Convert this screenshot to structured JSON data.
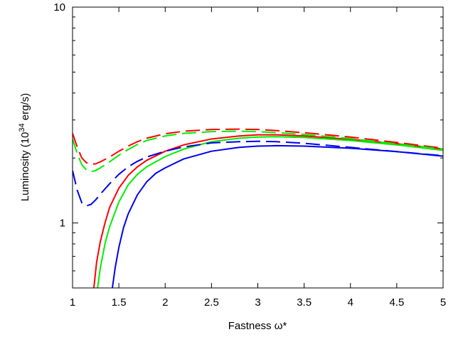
{
  "chart_data": {
    "type": "line",
    "title": "",
    "xlabel": "Fastness ω*",
    "ylabel": "Luminosity (10^34 erg/s)",
    "ylabel_parts": {
      "pre": "Luminosity (10",
      "sup": "34",
      "post": " erg/s)"
    },
    "xlim": [
      1,
      5
    ],
    "ylim": [
      0.5,
      10
    ],
    "yscale": "log",
    "grid": false,
    "legend": "none",
    "x_ticks": [
      1,
      1.5,
      2,
      2.5,
      3,
      3.5,
      4,
      4.5,
      5
    ],
    "x_tick_labels": [
      "1",
      "1.5",
      "2",
      "2.5",
      "3",
      "3.5",
      "4",
      "4.5",
      "5"
    ],
    "y_ticks": [
      1,
      10
    ],
    "y_tick_labels": [
      "1",
      "10"
    ],
    "series": [
      {
        "color": "#ff0000",
        "style": "solid",
        "x": [
          1.23,
          1.26,
          1.3,
          1.35,
          1.4,
          1.5,
          1.6,
          1.7,
          1.8,
          2.0,
          2.2,
          2.5,
          2.8,
          3.0,
          3.2,
          3.5,
          4.0,
          4.5,
          5.0
        ],
        "y": [
          0.5,
          0.66,
          0.82,
          1.0,
          1.18,
          1.45,
          1.66,
          1.82,
          1.95,
          2.15,
          2.3,
          2.45,
          2.53,
          2.56,
          2.56,
          2.53,
          2.44,
          2.33,
          2.2
        ]
      },
      {
        "color": "#00ee00",
        "style": "solid",
        "x": [
          1.27,
          1.3,
          1.35,
          1.4,
          1.5,
          1.6,
          1.7,
          1.8,
          2.0,
          2.2,
          2.5,
          2.8,
          3.0,
          3.2,
          3.5,
          4.0,
          4.5,
          5.0
        ],
        "y": [
          0.5,
          0.62,
          0.8,
          0.96,
          1.25,
          1.5,
          1.68,
          1.82,
          2.03,
          2.2,
          2.38,
          2.47,
          2.5,
          2.51,
          2.49,
          2.41,
          2.3,
          2.17
        ]
      },
      {
        "color": "#0000ee",
        "style": "solid",
        "x": [
          1.43,
          1.46,
          1.5,
          1.55,
          1.6,
          1.7,
          1.8,
          1.9,
          2.0,
          2.2,
          2.5,
          2.8,
          3.0,
          3.2,
          3.5,
          4.0,
          4.5,
          5.0
        ],
        "y": [
          0.5,
          0.62,
          0.77,
          0.95,
          1.1,
          1.35,
          1.55,
          1.7,
          1.8,
          1.98,
          2.15,
          2.24,
          2.27,
          2.28,
          2.27,
          2.22,
          2.14,
          2.04
        ]
      },
      {
        "color": "#ff0000",
        "style": "dashed",
        "x": [
          1.0,
          1.05,
          1.1,
          1.15,
          1.2,
          1.25,
          1.3,
          1.4,
          1.5,
          1.6,
          1.7,
          1.8,
          2.0,
          2.2,
          2.5,
          2.8,
          3.0,
          3.2,
          3.5,
          4.0,
          4.5,
          5.0
        ],
        "y": [
          2.6,
          2.25,
          2.0,
          1.9,
          1.87,
          1.88,
          1.92,
          2.02,
          2.15,
          2.27,
          2.38,
          2.47,
          2.59,
          2.66,
          2.71,
          2.72,
          2.71,
          2.68,
          2.62,
          2.5,
          2.36,
          2.22
        ]
      },
      {
        "color": "#00ee00",
        "style": "dashed",
        "x": [
          1.0,
          1.05,
          1.1,
          1.15,
          1.2,
          1.25,
          1.3,
          1.4,
          1.5,
          1.6,
          1.7,
          1.8,
          2.0,
          2.2,
          2.5,
          2.8,
          3.0,
          3.2,
          3.5,
          4.0,
          4.5,
          5.0
        ],
        "y": [
          2.45,
          2.1,
          1.86,
          1.76,
          1.73,
          1.75,
          1.8,
          1.92,
          2.06,
          2.19,
          2.31,
          2.41,
          2.53,
          2.6,
          2.65,
          2.66,
          2.65,
          2.62,
          2.57,
          2.46,
          2.32,
          2.2
        ]
      },
      {
        "color": "#0000ee",
        "style": "dashed",
        "x": [
          1.0,
          1.05,
          1.1,
          1.15,
          1.2,
          1.25,
          1.3,
          1.4,
          1.5,
          1.6,
          1.7,
          1.8,
          2.0,
          2.2,
          2.5,
          2.8,
          3.0,
          3.2,
          3.5,
          4.0,
          4.5,
          5.0
        ],
        "y": [
          1.75,
          1.42,
          1.24,
          1.2,
          1.22,
          1.28,
          1.36,
          1.52,
          1.68,
          1.82,
          1.93,
          2.02,
          2.15,
          2.25,
          2.35,
          2.38,
          2.39,
          2.38,
          2.34,
          2.24,
          2.14,
          2.05
        ]
      }
    ]
  }
}
